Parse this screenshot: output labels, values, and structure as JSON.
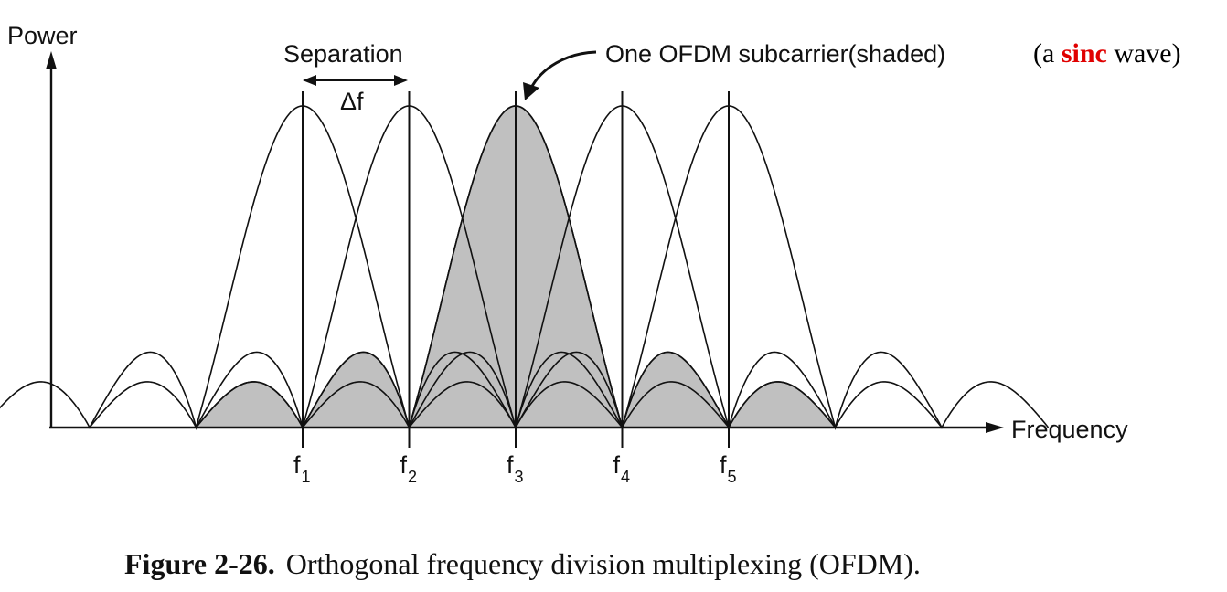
{
  "axes": {
    "y_label": "Power",
    "x_label": "Frequency"
  },
  "separation": {
    "label": "Separation",
    "delta": "Δf"
  },
  "annotation": {
    "text": "One OFDM subcarrier(shaded)",
    "note_open": "(a ",
    "note_emphasis": "sinc",
    "note_close": " wave)",
    "emphasis_color": "#e00000"
  },
  "subcarriers": [
    {
      "base": "f",
      "sub": "1"
    },
    {
      "base": "f",
      "sub": "2"
    },
    {
      "base": "f",
      "sub": "3"
    },
    {
      "base": "f",
      "sub": "4"
    },
    {
      "base": "f",
      "sub": "5"
    }
  ],
  "shaded_subcarrier": 3,
  "caption": {
    "label": "Figure 2-26.",
    "text": "Orthogonal frequency division multiplexing (OFDM)."
  },
  "colors": {
    "shade": "#c0c0c0",
    "line": "#111111"
  }
}
